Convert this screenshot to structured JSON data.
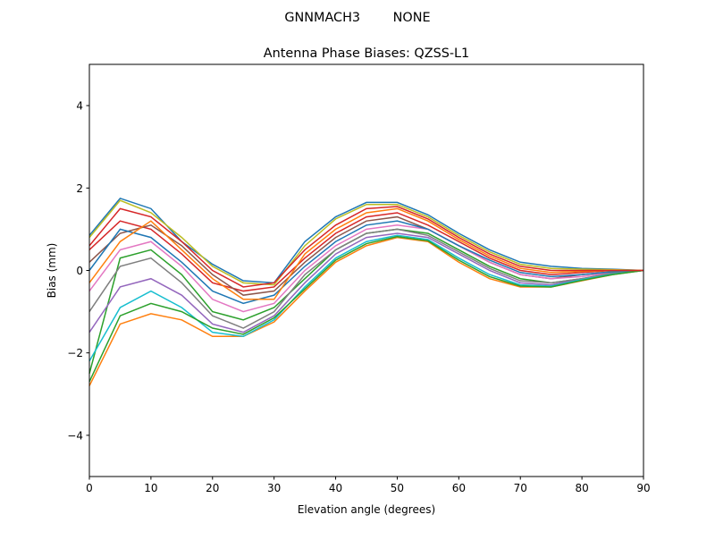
{
  "chart_data": {
    "type": "line",
    "suptitle": "GNNMACH3        NONE",
    "title": "Antenna Phase Biases: QZSS-L1",
    "xlabel": "Elevation angle (degrees)",
    "ylabel": "Bias (mm)",
    "xlim": [
      0,
      90
    ],
    "ylim": [
      -5,
      5
    ],
    "xticks": [
      0,
      10,
      20,
      30,
      40,
      50,
      60,
      70,
      80,
      90
    ],
    "yticks": [
      -4,
      -2,
      0,
      2,
      4
    ],
    "grid": false,
    "x": [
      0,
      5,
      10,
      15,
      20,
      25,
      30,
      35,
      40,
      45,
      50,
      55,
      60,
      65,
      70,
      75,
      80,
      85,
      90
    ],
    "colors": [
      "#1f77b4",
      "#ff7f0e",
      "#2ca02c",
      "#d62728",
      "#9467bd",
      "#8c564b",
      "#e377c2",
      "#7f7f7f",
      "#bcbd22",
      "#17becf"
    ],
    "series": [
      {
        "values": [
          0.85,
          1.75,
          1.5,
          0.7,
          0.15,
          -0.25,
          -0.3,
          0.7,
          1.3,
          1.65,
          1.65,
          1.35,
          0.9,
          0.5,
          0.2,
          0.1,
          0.05,
          0.03,
          0
        ]
      },
      {
        "values": [
          -2.8,
          -1.3,
          -1.05,
          -1.2,
          -1.6,
          -1.6,
          -1.25,
          -0.5,
          0.2,
          0.6,
          0.8,
          0.7,
          0.2,
          -0.2,
          -0.4,
          -0.4,
          -0.25,
          -0.1,
          0
        ]
      },
      {
        "values": [
          -2.5,
          0.3,
          0.5,
          -0.1,
          -1.0,
          -1.2,
          -0.9,
          -0.2,
          0.5,
          0.9,
          1.0,
          0.9,
          0.5,
          0.1,
          -0.2,
          -0.3,
          -0.2,
          -0.08,
          0
        ]
      },
      {
        "values": [
          0.5,
          1.2,
          1.0,
          0.4,
          -0.3,
          -0.5,
          -0.4,
          0.3,
          0.9,
          1.3,
          1.4,
          1.1,
          0.7,
          0.3,
          0,
          -0.1,
          -0.05,
          0,
          0
        ]
      },
      {
        "values": [
          -1.5,
          -0.4,
          -0.2,
          -0.6,
          -1.3,
          -1.5,
          -1.1,
          -0.3,
          0.4,
          0.8,
          0.9,
          0.8,
          0.4,
          0,
          -0.3,
          -0.35,
          -0.2,
          -0.08,
          0
        ]
      },
      {
        "values": [
          0.2,
          0.9,
          1.1,
          0.6,
          -0.1,
          -0.6,
          -0.5,
          0.2,
          0.8,
          1.2,
          1.3,
          1.0,
          0.6,
          0.2,
          -0.1,
          -0.2,
          -0.1,
          -0.03,
          0
        ]
      },
      {
        "values": [
          -0.5,
          0.5,
          0.7,
          0.1,
          -0.7,
          -1.0,
          -0.8,
          0,
          0.6,
          1.0,
          1.1,
          1.0,
          0.6,
          0.2,
          -0.1,
          -0.2,
          -0.15,
          -0.05,
          0
        ]
      },
      {
        "values": [
          -1.0,
          0.1,
          0.3,
          -0.3,
          -1.1,
          -1.4,
          -1.0,
          -0.1,
          0.5,
          0.9,
          1.0,
          0.85,
          0.45,
          0.05,
          -0.25,
          -0.3,
          -0.2,
          -0.06,
          0
        ]
      },
      {
        "values": [
          0.8,
          1.7,
          1.4,
          0.8,
          0.1,
          -0.3,
          -0.35,
          0.6,
          1.25,
          1.6,
          1.6,
          1.3,
          0.85,
          0.45,
          0.15,
          0.05,
          0.03,
          0.02,
          0
        ]
      },
      {
        "values": [
          -2.2,
          -0.9,
          -0.5,
          -0.9,
          -1.5,
          -1.6,
          -1.2,
          -0.4,
          0.3,
          0.7,
          0.85,
          0.75,
          0.3,
          -0.1,
          -0.35,
          -0.38,
          -0.22,
          -0.09,
          0
        ]
      },
      {
        "values": [
          0,
          1.0,
          0.8,
          0.2,
          -0.5,
          -0.8,
          -0.6,
          0.1,
          0.7,
          1.1,
          1.2,
          1.0,
          0.6,
          0.25,
          -0.05,
          -0.15,
          -0.1,
          -0.03,
          0
        ]
      },
      {
        "values": [
          -0.3,
          0.7,
          1.2,
          0.5,
          -0.2,
          -0.7,
          -0.7,
          0.4,
          1.0,
          1.4,
          1.5,
          1.2,
          0.75,
          0.35,
          0.05,
          -0.05,
          -0.02,
          0,
          0
        ]
      },
      {
        "values": [
          -2.7,
          -1.1,
          -0.8,
          -1.0,
          -1.4,
          -1.55,
          -1.15,
          -0.45,
          0.25,
          0.65,
          0.82,
          0.72,
          0.25,
          -0.15,
          -0.38,
          -0.4,
          -0.24,
          -0.1,
          0
        ]
      },
      {
        "values": [
          0.6,
          1.5,
          1.3,
          0.7,
          0,
          -0.4,
          -0.3,
          0.5,
          1.1,
          1.5,
          1.55,
          1.25,
          0.8,
          0.4,
          0.1,
          0,
          0,
          0,
          0
        ]
      }
    ]
  }
}
